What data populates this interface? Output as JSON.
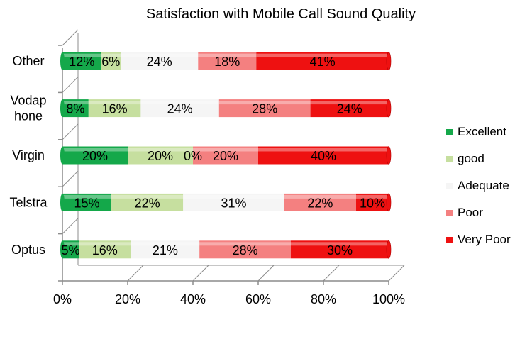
{
  "chart_data": {
    "type": "bar",
    "orientation": "horizontal",
    "stacked": "percent",
    "title": "Satisfaction with Mobile Call Sound Quality",
    "categories": [
      "Optus",
      "Telstra",
      "Virgin",
      "Vodaphone",
      "Other"
    ],
    "category_label_lines": [
      [
        "Optus"
      ],
      [
        "Telstra"
      ],
      [
        "Virgin"
      ],
      [
        "Vodap",
        "hone"
      ],
      [
        "Other"
      ]
    ],
    "series": [
      {
        "name": "Excellent",
        "color": "#14a84a",
        "values": [
          5,
          15,
          20,
          8,
          12
        ],
        "labels": [
          "5%",
          "15%",
          "20%",
          "8%",
          "12%"
        ]
      },
      {
        "name": "good",
        "color": "#c6df9f",
        "values": [
          16,
          22,
          20,
          16,
          6
        ],
        "labels": [
          "16%",
          "22%",
          "20%",
          "16%",
          "6%"
        ]
      },
      {
        "name": "Adequate",
        "color": "#f5f5f5",
        "values": [
          21,
          31,
          0,
          24,
          24
        ],
        "labels": [
          "21%",
          "31%",
          "0%",
          "24%",
          "24%"
        ]
      },
      {
        "name": "Poor",
        "color": "#f48080",
        "values": [
          28,
          22,
          20,
          28,
          18
        ],
        "labels": [
          "28%",
          "22%",
          "20%",
          "28%",
          "18%"
        ]
      },
      {
        "name": "Very Poor",
        "color": "#ee1111",
        "values": [
          30,
          10,
          40,
          24,
          41
        ],
        "labels": [
          "30%",
          "10%",
          "40%",
          "24%",
          "41%"
        ]
      }
    ],
    "x_tick_labels": [
      "0%",
      "20%",
      "40%",
      "60%",
      "80%",
      "100%"
    ],
    "xlim": [
      0,
      100
    ],
    "legend_position": "right",
    "grid": false
  }
}
